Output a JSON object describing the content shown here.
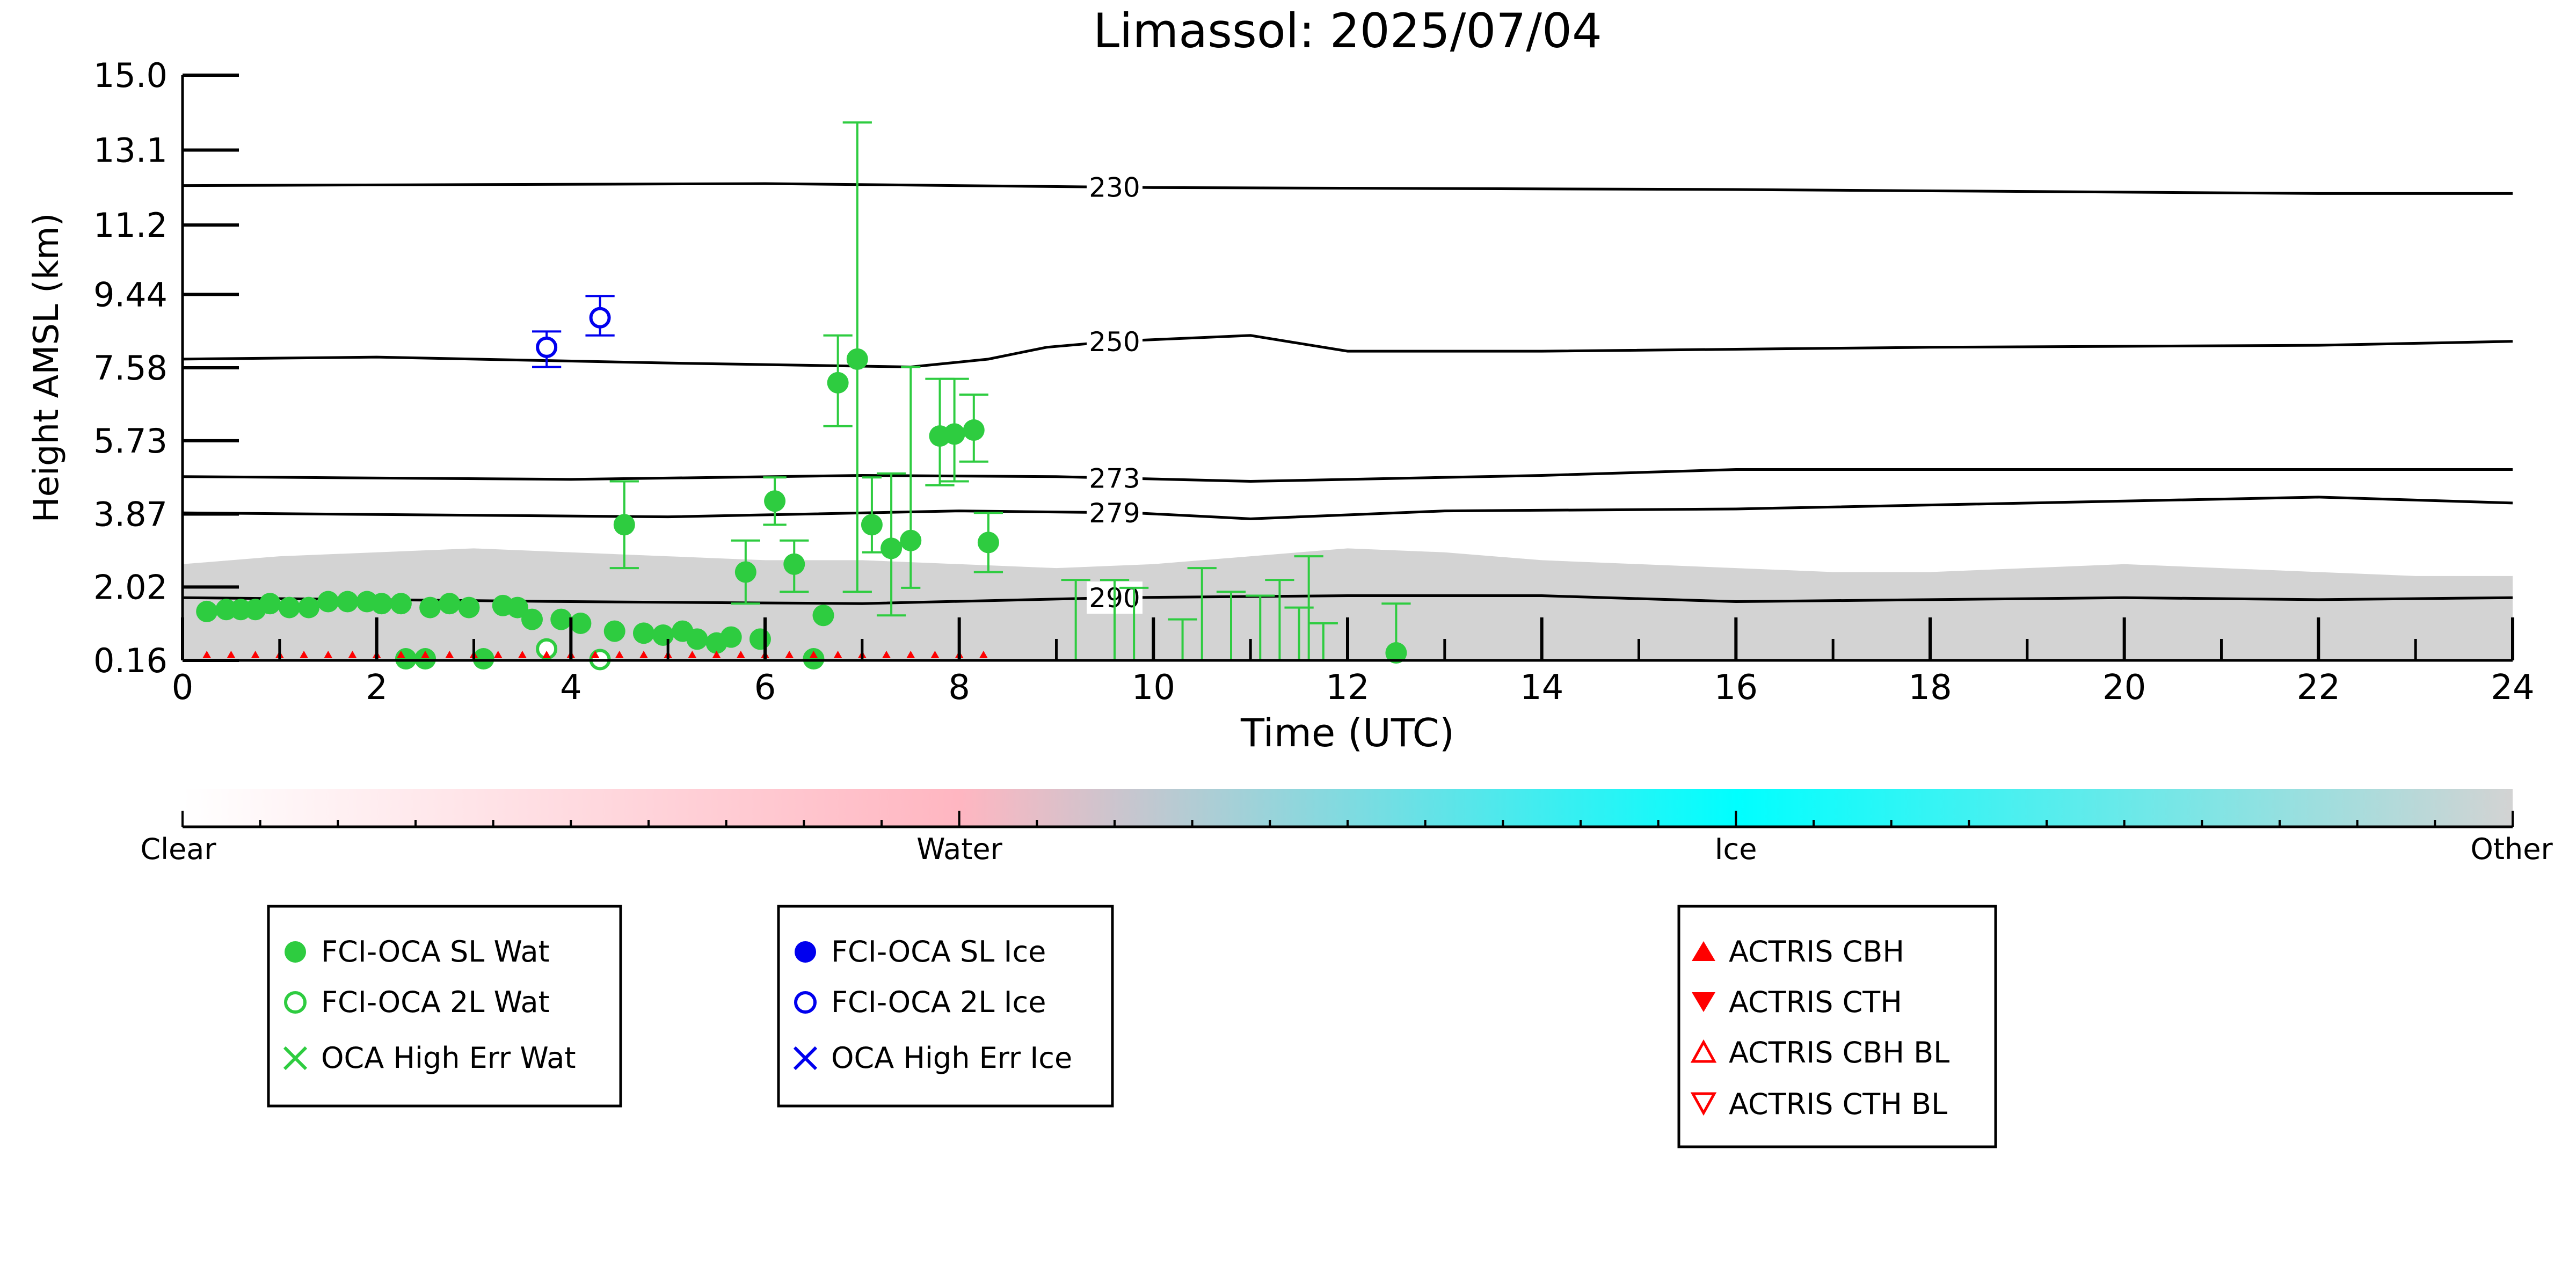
{
  "chart_data": {
    "type": "scatter",
    "title": "Limassol: 2025/07/04",
    "xlabel": "Time (UTC)",
    "ylabel": "Height AMSL (km)",
    "xlim": [
      0,
      24
    ],
    "ylim": [
      0.16,
      15.0
    ],
    "xticks": [
      0,
      2,
      4,
      6,
      8,
      10,
      12,
      14,
      16,
      18,
      20,
      22,
      24
    ],
    "yticks": [
      0.16,
      2.02,
      3.87,
      5.73,
      7.58,
      9.44,
      11.2,
      13.1,
      15.0
    ],
    "ytick_labels": [
      "0.16",
      "2.02",
      "3.87",
      "5.73",
      "7.58",
      "9.44",
      "11.2",
      "13.1",
      "15.0"
    ],
    "background_cloud_mask": {
      "label": "Other",
      "color": "#d3d3d3",
      "top_profile": [
        [
          0,
          2.6
        ],
        [
          1,
          2.8
        ],
        [
          2,
          2.9
        ],
        [
          3,
          3.0
        ],
        [
          4,
          2.9
        ],
        [
          5,
          2.8
        ],
        [
          6,
          2.7
        ],
        [
          7,
          2.7
        ],
        [
          8,
          2.6
        ],
        [
          9,
          2.5
        ],
        [
          10,
          2.6
        ],
        [
          11,
          2.8
        ],
        [
          12,
          3.0
        ],
        [
          13,
          2.9
        ],
        [
          14,
          2.7
        ],
        [
          15,
          2.6
        ],
        [
          16,
          2.5
        ],
        [
          17,
          2.4
        ],
        [
          18,
          2.4
        ],
        [
          19,
          2.5
        ],
        [
          20,
          2.6
        ],
        [
          21,
          2.5
        ],
        [
          22,
          2.4
        ],
        [
          23,
          2.3
        ],
        [
          24,
          2.3
        ]
      ]
    },
    "isotherms": [
      {
        "label": "230",
        "label_x": 9.6,
        "points": [
          [
            0,
            12.2
          ],
          [
            6,
            12.25
          ],
          [
            10,
            12.15
          ],
          [
            16,
            12.1
          ],
          [
            22,
            12.0
          ],
          [
            24,
            12.0
          ]
        ]
      },
      {
        "label": "250",
        "label_x": 9.6,
        "points": [
          [
            0,
            7.8
          ],
          [
            2,
            7.85
          ],
          [
            5,
            7.7
          ],
          [
            7.5,
            7.6
          ],
          [
            8.3,
            7.8
          ],
          [
            8.9,
            8.1
          ],
          [
            9.6,
            8.25
          ],
          [
            11,
            8.4
          ],
          [
            12,
            8.0
          ],
          [
            14,
            8.0
          ],
          [
            18,
            8.1
          ],
          [
            22,
            8.15
          ],
          [
            24,
            8.25
          ]
        ]
      },
      {
        "label": "273",
        "label_x": 9.6,
        "points": [
          [
            0,
            4.82
          ],
          [
            4,
            4.75
          ],
          [
            7,
            4.85
          ],
          [
            9,
            4.82
          ],
          [
            11,
            4.7
          ],
          [
            14,
            4.85
          ],
          [
            16,
            5.0
          ],
          [
            18,
            5.0
          ],
          [
            24,
            5.0
          ]
        ]
      },
      {
        "label": "279",
        "label_x": 9.6,
        "points": [
          [
            0,
            3.9
          ],
          [
            5,
            3.8
          ],
          [
            8,
            3.95
          ],
          [
            9.8,
            3.9
          ],
          [
            11,
            3.75
          ],
          [
            13,
            3.95
          ],
          [
            16,
            4.0
          ],
          [
            20,
            4.2
          ],
          [
            22,
            4.3
          ],
          [
            24,
            4.15
          ]
        ]
      },
      {
        "label": "290",
        "label_x": 9.6,
        "points": [
          [
            0,
            1.75
          ],
          [
            4,
            1.65
          ],
          [
            7,
            1.6
          ],
          [
            9.6,
            1.75
          ],
          [
            12,
            1.8
          ],
          [
            14,
            1.8
          ],
          [
            16,
            1.65
          ],
          [
            18,
            1.7
          ],
          [
            20,
            1.75
          ],
          [
            22,
            1.7
          ],
          [
            24,
            1.75
          ]
        ]
      }
    ],
    "series": [
      {
        "name": "FCI-OCA SL Wat",
        "color": "#2ecc40",
        "marker": "filled-circle",
        "points": [
          {
            "x": 0.25,
            "y": 1.4
          },
          {
            "x": 0.45,
            "y": 1.45
          },
          {
            "x": 0.6,
            "y": 1.45
          },
          {
            "x": 0.75,
            "y": 1.45
          },
          {
            "x": 0.9,
            "y": 1.6
          },
          {
            "x": 1.1,
            "y": 1.5
          },
          {
            "x": 1.3,
            "y": 1.5
          },
          {
            "x": 1.5,
            "y": 1.65
          },
          {
            "x": 1.7,
            "y": 1.65
          },
          {
            "x": 1.9,
            "y": 1.65
          },
          {
            "x": 2.05,
            "y": 1.6
          },
          {
            "x": 2.25,
            "y": 1.6
          },
          {
            "x": 2.55,
            "y": 1.5
          },
          {
            "x": 2.75,
            "y": 1.6
          },
          {
            "x": 2.95,
            "y": 1.5
          },
          {
            "x": 3.3,
            "y": 1.55
          },
          {
            "x": 3.45,
            "y": 1.5
          },
          {
            "x": 3.6,
            "y": 1.2
          },
          {
            "x": 3.9,
            "y": 1.2
          },
          {
            "x": 4.1,
            "y": 1.1
          },
          {
            "x": 4.45,
            "y": 0.9
          },
          {
            "x": 4.55,
            "y": 3.6
          },
          {
            "x": 4.75,
            "y": 0.85
          },
          {
            "x": 4.95,
            "y": 0.8
          },
          {
            "x": 5.15,
            "y": 0.9
          },
          {
            "x": 5.3,
            "y": 0.7
          },
          {
            "x": 5.5,
            "y": 0.6
          },
          {
            "x": 5.65,
            "y": 0.75
          },
          {
            "x": 5.8,
            "y": 2.4
          },
          {
            "x": 5.95,
            "y": 0.7
          },
          {
            "x": 6.1,
            "y": 4.2
          },
          {
            "x": 6.3,
            "y": 2.6
          },
          {
            "x": 6.6,
            "y": 1.3
          },
          {
            "x": 6.75,
            "y": 7.2
          },
          {
            "x": 6.95,
            "y": 7.8
          },
          {
            "x": 7.1,
            "y": 3.6
          },
          {
            "x": 7.3,
            "y": 3.0
          },
          {
            "x": 7.5,
            "y": 3.2
          },
          {
            "x": 7.8,
            "y": 5.85
          },
          {
            "x": 7.95,
            "y": 5.9
          },
          {
            "x": 8.15,
            "y": 6.0
          },
          {
            "x": 8.3,
            "y": 3.15
          },
          {
            "x": 2.3,
            "y": 0.2
          },
          {
            "x": 2.5,
            "y": 0.2
          },
          {
            "x": 3.1,
            "y": 0.2
          },
          {
            "x": 6.5,
            "y": 0.2
          },
          {
            "x": 12.5,
            "y": 0.35
          }
        ]
      },
      {
        "name": "FCI-OCA 2L Wat",
        "color": "#2ecc40",
        "marker": "open-circle",
        "points": [
          {
            "x": 3.75,
            "y": 0.45
          },
          {
            "x": 4.3,
            "y": 0.18
          }
        ]
      },
      {
        "name": "OCA High Err Wat",
        "color": "#2ecc40",
        "marker": "x",
        "points": []
      },
      {
        "name": "FCI-OCA SL Ice",
        "color": "#0000ee",
        "marker": "filled-circle",
        "points": []
      },
      {
        "name": "FCI-OCA 2L Ice",
        "color": "#0000ee",
        "marker": "open-circle",
        "points": [
          {
            "x": 3.75,
            "y": 8.1
          },
          {
            "x": 4.3,
            "y": 8.85
          }
        ]
      },
      {
        "name": "OCA High Err Ice",
        "color": "#0000ee",
        "marker": "x",
        "points": []
      },
      {
        "name": "ACTRIS CBH",
        "color": "#ff0000",
        "marker": "filled-triangle-up",
        "points": [
          {
            "x": 0.25,
            "y": 0.16
          },
          {
            "x": 0.5,
            "y": 0.16
          },
          {
            "x": 0.75,
            "y": 0.16
          },
          {
            "x": 1.0,
            "y": 0.16
          },
          {
            "x": 1.25,
            "y": 0.16
          },
          {
            "x": 1.5,
            "y": 0.16
          },
          {
            "x": 1.75,
            "y": 0.16
          },
          {
            "x": 2.0,
            "y": 0.16
          },
          {
            "x": 2.25,
            "y": 0.16
          },
          {
            "x": 2.5,
            "y": 0.16
          },
          {
            "x": 2.75,
            "y": 0.16
          },
          {
            "x": 3.0,
            "y": 0.16
          },
          {
            "x": 3.25,
            "y": 0.16
          },
          {
            "x": 3.5,
            "y": 0.16
          },
          {
            "x": 3.75,
            "y": 0.16
          },
          {
            "x": 4.0,
            "y": 0.16
          },
          {
            "x": 4.25,
            "y": 0.16
          },
          {
            "x": 4.5,
            "y": 0.16
          },
          {
            "x": 4.75,
            "y": 0.16
          },
          {
            "x": 5.0,
            "y": 0.16
          },
          {
            "x": 5.25,
            "y": 0.16
          },
          {
            "x": 5.5,
            "y": 0.16
          },
          {
            "x": 5.75,
            "y": 0.16
          },
          {
            "x": 6.0,
            "y": 0.16
          },
          {
            "x": 6.25,
            "y": 0.16
          },
          {
            "x": 6.5,
            "y": 0.16
          },
          {
            "x": 6.75,
            "y": 0.16
          },
          {
            "x": 7.0,
            "y": 0.16
          },
          {
            "x": 7.25,
            "y": 0.16
          },
          {
            "x": 7.5,
            "y": 0.16
          },
          {
            "x": 7.75,
            "y": 0.16
          },
          {
            "x": 8.0,
            "y": 0.16
          },
          {
            "x": 8.25,
            "y": 0.16
          }
        ]
      },
      {
        "name": "ACTRIS CTH",
        "color": "#ff0000",
        "marker": "filled-triangle-down",
        "points": []
      },
      {
        "name": "ACTRIS CBH BL",
        "color": "#ff0000",
        "marker": "open-triangle-up",
        "points": []
      },
      {
        "name": "ACTRIS CTH BL",
        "color": "#ff0000",
        "marker": "open-triangle-down",
        "points": []
      }
    ],
    "error_bars": [
      {
        "x": 4.55,
        "ylow": 2.5,
        "yhigh": 4.7,
        "xerr": 0.15
      },
      {
        "x": 5.8,
        "ylow": 1.6,
        "yhigh": 3.2,
        "xerr": 0.15
      },
      {
        "x": 6.1,
        "ylow": 3.6,
        "yhigh": 4.8,
        "xerr": 0.12
      },
      {
        "x": 6.3,
        "ylow": 1.9,
        "yhigh": 3.2,
        "xerr": 0.15
      },
      {
        "x": 6.75,
        "ylow": 6.1,
        "yhigh": 8.4,
        "xerr": 0.15
      },
      {
        "x": 6.95,
        "ylow": 1.9,
        "yhigh": 13.8,
        "xerr": 0.15
      },
      {
        "x": 7.1,
        "ylow": 2.9,
        "yhigh": 4.8,
        "xerr": 0.1
      },
      {
        "x": 7.3,
        "ylow": 1.3,
        "yhigh": 4.9,
        "xerr": 0.15
      },
      {
        "x": 7.5,
        "ylow": 2.0,
        "yhigh": 7.6,
        "xerr": 0.1
      },
      {
        "x": 7.8,
        "ylow": 4.6,
        "yhigh": 7.3,
        "xerr": 0.15
      },
      {
        "x": 7.95,
        "ylow": 4.7,
        "yhigh": 7.3,
        "xerr": 0.15
      },
      {
        "x": 8.15,
        "ylow": 5.2,
        "yhigh": 6.9,
        "xerr": 0.15
      },
      {
        "x": 8.3,
        "ylow": 2.4,
        "yhigh": 3.9,
        "xerr": 0.15
      },
      {
        "x": 3.75,
        "ylow": 7.6,
        "yhigh": 8.5,
        "xerr": 0.15
      },
      {
        "x": 4.3,
        "ylow": 8.4,
        "yhigh": 9.4,
        "xerr": 0.15
      },
      {
        "x": 9.2,
        "ylow": 0.16,
        "yhigh": 2.2,
        "xerr": 0.15
      },
      {
        "x": 9.6,
        "ylow": 0.16,
        "yhigh": 2.2,
        "xerr": 0.15
      },
      {
        "x": 9.8,
        "ylow": 0.16,
        "yhigh": 2.0,
        "xerr": 0.15
      },
      {
        "x": 10.3,
        "ylow": 0.16,
        "yhigh": 1.2,
        "xerr": 0.15
      },
      {
        "x": 10.5,
        "ylow": 0.16,
        "yhigh": 2.5,
        "xerr": 0.15
      },
      {
        "x": 10.8,
        "ylow": 0.16,
        "yhigh": 1.9,
        "xerr": 0.15
      },
      {
        "x": 11.1,
        "ylow": 0.16,
        "yhigh": 1.8,
        "xerr": 0.15
      },
      {
        "x": 11.3,
        "ylow": 0.16,
        "yhigh": 2.2,
        "xerr": 0.15
      },
      {
        "x": 11.5,
        "ylow": 0.16,
        "yhigh": 1.5,
        "xerr": 0.15
      },
      {
        "x": 11.6,
        "ylow": 0.16,
        "yhigh": 2.8,
        "xerr": 0.15
      },
      {
        "x": 11.75,
        "ylow": 0.16,
        "yhigh": 1.1,
        "xerr": 0.15
      },
      {
        "x": 12.5,
        "ylow": 0.16,
        "yhigh": 1.6,
        "xerr": 0.15
      }
    ],
    "colorbar": {
      "labels": [
        "Clear",
        "Water",
        "Ice",
        "Other"
      ],
      "colors": [
        "#ffffff",
        "#ffb6c1",
        "#00ffff",
        "#d3d3d3"
      ]
    },
    "legends": [
      {
        "entries": [
          "FCI-OCA SL Wat",
          "FCI-OCA 2L Wat",
          "OCA High Err Wat"
        ]
      },
      {
        "entries": [
          "FCI-OCA SL Ice",
          "FCI-OCA 2L Ice",
          "OCA High Err Ice"
        ]
      },
      {
        "entries": [
          "ACTRIS CBH",
          "ACTRIS CTH",
          "ACTRIS CBH BL",
          "ACTRIS CTH BL"
        ]
      }
    ],
    "grid": false
  }
}
